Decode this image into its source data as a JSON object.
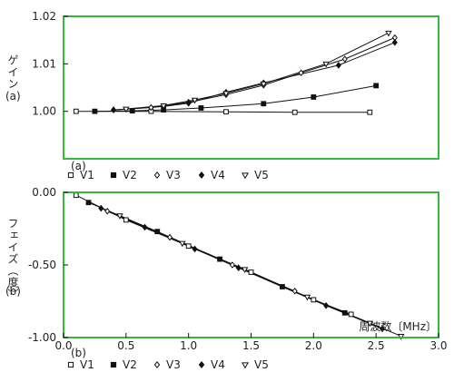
{
  "chart_data": [
    {
      "type": "line",
      "panel_label": "(a)",
      "ylabel_top": "ゲイン",
      "ylabel_bottom": "(a)",
      "xlim": [
        0,
        3.0
      ],
      "ylim": [
        0.99,
        1.02
      ],
      "yticks": [
        {
          "value": 1.02,
          "label": "1.02"
        },
        {
          "value": 1.01,
          "label": "1.01"
        },
        {
          "value": 1.0,
          "label": "1.00"
        }
      ],
      "legend_label": "(a)",
      "series": [
        {
          "name": "V1",
          "marker": "open-square",
          "x": [
            0.1,
            0.7,
            1.3,
            1.85,
            2.45
          ],
          "y": [
            1.0,
            1.0,
            0.9999,
            0.9998,
            0.9998
          ]
        },
        {
          "name": "V2",
          "marker": "filled-square",
          "x": [
            0.25,
            0.55,
            0.8,
            1.1,
            1.6,
            2.0,
            2.5
          ],
          "y": [
            1.0,
            1.0001,
            1.0003,
            1.0007,
            1.0016,
            1.003,
            1.0054
          ]
        },
        {
          "name": "V3",
          "marker": "open-diamond",
          "x": [
            0.4,
            0.7,
            1.0,
            1.3,
            1.6,
            1.9,
            2.25,
            2.65
          ],
          "y": [
            1.0003,
            1.0008,
            1.0019,
            1.0035,
            1.0055,
            1.0081,
            1.011,
            1.0155
          ]
        },
        {
          "name": "V4",
          "marker": "filled-diamond",
          "x": [
            0.4,
            0.8,
            1.0,
            1.3,
            1.6,
            2.2,
            2.65
          ],
          "y": [
            1.0003,
            1.001,
            1.0017,
            1.004,
            1.006,
            1.0097,
            1.0145
          ]
        },
        {
          "name": "V5",
          "marker": "open-triangle",
          "x": [
            0.5,
            0.8,
            1.05,
            1.3,
            1.6,
            2.1,
            2.6
          ],
          "y": [
            1.0005,
            1.0012,
            1.0024,
            1.0038,
            1.0058,
            1.01,
            1.0165
          ]
        }
      ]
    },
    {
      "type": "line",
      "panel_label": "(b)",
      "ylabel_top": "フェイズ（度）",
      "ylabel_bottom": "(b)",
      "xlabel": "周波数〔MHz〕",
      "xlim": [
        0,
        3.0
      ],
      "ylim": [
        -1.0,
        0.0
      ],
      "xticks": [
        {
          "value": 0.0,
          "label": "0.0"
        },
        {
          "value": 0.5,
          "label": "0.5"
        },
        {
          "value": 1.0,
          "label": "1.0"
        },
        {
          "value": 1.5,
          "label": "1.5"
        },
        {
          "value": 2.0,
          "label": "2.0"
        },
        {
          "value": 2.5,
          "label": "2.5"
        },
        {
          "value": 3.0,
          "label": "3.0"
        }
      ],
      "yticks": [
        {
          "value": 0.0,
          "label": "0.00"
        },
        {
          "value": -0.5,
          "label": "-0.50"
        },
        {
          "value": -1.0,
          "label": "-1.00"
        }
      ],
      "legend_label": "(b)",
      "series": [
        {
          "name": "V1",
          "marker": "open-square",
          "x": [
            0.1,
            0.5,
            1.0,
            1.5,
            2.0,
            2.3
          ],
          "y": [
            -0.02,
            -0.19,
            -0.37,
            -0.55,
            -0.74,
            -0.84
          ]
        },
        {
          "name": "V2",
          "marker": "filled-square",
          "x": [
            0.2,
            0.75,
            1.25,
            1.75,
            2.25
          ],
          "y": [
            -0.07,
            -0.27,
            -0.46,
            -0.65,
            -0.83
          ]
        },
        {
          "name": "V3",
          "marker": "open-diamond",
          "x": [
            0.35,
            0.85,
            1.35,
            1.85
          ],
          "y": [
            -0.13,
            -0.31,
            -0.5,
            -0.68
          ]
        },
        {
          "name": "V4",
          "marker": "filled-diamond",
          "x": [
            0.3,
            0.65,
            1.05,
            1.4,
            2.1,
            2.55
          ],
          "y": [
            -0.11,
            -0.24,
            -0.39,
            -0.52,
            -0.78,
            -0.94
          ]
        },
        {
          "name": "V5",
          "marker": "open-triangle",
          "x": [
            0.45,
            0.95,
            1.45,
            1.95,
            2.45,
            2.7
          ],
          "y": [
            -0.16,
            -0.35,
            -0.53,
            -0.72,
            -0.9,
            -0.99
          ]
        }
      ]
    }
  ],
  "colors": {
    "frame": "#35b93c",
    "ink": "#111111",
    "text": "#222222"
  }
}
